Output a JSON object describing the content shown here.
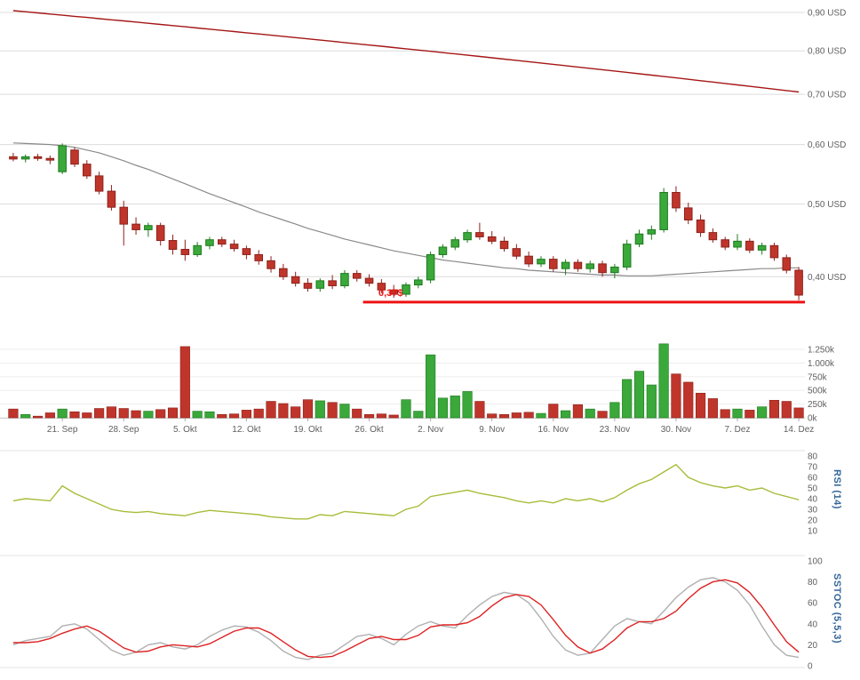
{
  "colors": {
    "up": "#3aa83a",
    "up_stroke": "#1d7a1d",
    "down": "#c0352b",
    "down_stroke": "#8c211a",
    "ma_long": "#a51616",
    "ma_short": "#8a8a8a",
    "support": "#ee1111",
    "rsi_line": "#a8bc3a",
    "stoch_k": "#b0b0b0",
    "stoch_d": "#dd2222",
    "grid": "#dcdcdc",
    "axis_text": "#606060",
    "panel_label": "#336699"
  },
  "x_axis": {
    "tick_labels": [
      "21. Sep",
      "28. Sep",
      "5. Okt",
      "12. Okt",
      "19. Okt",
      "26. Okt",
      "2. Nov",
      "9. Nov",
      "16. Nov",
      "23. Nov",
      "30. Nov",
      "7. Dez",
      "14. Dez"
    ],
    "tick_indices": [
      4,
      9,
      14,
      19,
      24,
      29,
      34,
      39,
      44,
      49,
      54,
      59,
      64
    ]
  },
  "chart_data": [
    {
      "id": "price",
      "type": "candlestick",
      "title": "",
      "y_scale": "log",
      "ylim": [
        0.355,
        0.93
      ],
      "y_ticks": [
        {
          "v": 0.9,
          "label": "0,90 USD"
        },
        {
          "v": 0.8,
          "label": "0,80 USD"
        },
        {
          "v": 0.7,
          "label": "0,70 USD"
        },
        {
          "v": 0.6,
          "label": "0,60 USD"
        },
        {
          "v": 0.5,
          "label": "0,50 USD"
        },
        {
          "v": 0.4,
          "label": "0,40 USD"
        }
      ],
      "candles": [
        [
          0.578,
          0.585,
          0.57,
          0.574
        ],
        [
          0.574,
          0.582,
          0.568,
          0.578
        ],
        [
          0.578,
          0.583,
          0.571,
          0.575
        ],
        [
          0.575,
          0.58,
          0.565,
          0.572
        ],
        [
          0.552,
          0.602,
          0.548,
          0.598
        ],
        [
          0.59,
          0.595,
          0.56,
          0.565
        ],
        [
          0.565,
          0.572,
          0.54,
          0.545
        ],
        [
          0.545,
          0.552,
          0.515,
          0.52
        ],
        [
          0.52,
          0.53,
          0.49,
          0.495
        ],
        [
          0.495,
          0.505,
          0.44,
          0.47
        ],
        [
          0.47,
          0.48,
          0.455,
          0.462
        ],
        [
          0.462,
          0.472,
          0.452,
          0.468
        ],
        [
          0.468,
          0.472,
          0.44,
          0.447
        ],
        [
          0.447,
          0.455,
          0.428,
          0.435
        ],
        [
          0.435,
          0.448,
          0.42,
          0.428
        ],
        [
          0.428,
          0.445,
          0.425,
          0.44
        ],
        [
          0.44,
          0.452,
          0.435,
          0.448
        ],
        [
          0.448,
          0.452,
          0.438,
          0.442
        ],
        [
          0.442,
          0.448,
          0.432,
          0.436
        ],
        [
          0.436,
          0.44,
          0.422,
          0.428
        ],
        [
          0.428,
          0.434,
          0.415,
          0.42
        ],
        [
          0.42,
          0.426,
          0.405,
          0.41
        ],
        [
          0.41,
          0.416,
          0.396,
          0.4
        ],
        [
          0.4,
          0.406,
          0.388,
          0.392
        ],
        [
          0.392,
          0.398,
          0.382,
          0.386
        ],
        [
          0.386,
          0.398,
          0.382,
          0.395
        ],
        [
          0.395,
          0.402,
          0.385,
          0.389
        ],
        [
          0.389,
          0.408,
          0.386,
          0.404
        ],
        [
          0.404,
          0.408,
          0.394,
          0.398
        ],
        [
          0.398,
          0.403,
          0.388,
          0.392
        ],
        [
          0.392,
          0.397,
          0.38,
          0.384
        ],
        [
          0.384,
          0.39,
          0.375,
          0.379
        ],
        [
          0.379,
          0.393,
          0.376,
          0.39
        ],
        [
          0.39,
          0.4,
          0.386,
          0.396
        ],
        [
          0.396,
          0.432,
          0.392,
          0.428
        ],
        [
          0.428,
          0.442,
          0.424,
          0.438
        ],
        [
          0.438,
          0.452,
          0.434,
          0.448
        ],
        [
          0.448,
          0.462,
          0.444,
          0.458
        ],
        [
          0.458,
          0.472,
          0.448,
          0.452
        ],
        [
          0.452,
          0.46,
          0.442,
          0.446
        ],
        [
          0.446,
          0.452,
          0.432,
          0.436
        ],
        [
          0.436,
          0.442,
          0.422,
          0.426
        ],
        [
          0.426,
          0.432,
          0.412,
          0.416
        ],
        [
          0.416,
          0.426,
          0.412,
          0.422
        ],
        [
          0.422,
          0.426,
          0.406,
          0.41
        ],
        [
          0.41,
          0.422,
          0.402,
          0.418
        ],
        [
          0.418,
          0.422,
          0.406,
          0.41
        ],
        [
          0.41,
          0.42,
          0.405,
          0.416
        ],
        [
          0.416,
          0.42,
          0.4,
          0.405
        ],
        [
          0.405,
          0.416,
          0.398,
          0.412
        ],
        [
          0.412,
          0.448,
          0.408,
          0.442
        ],
        [
          0.442,
          0.462,
          0.438,
          0.456
        ],
        [
          0.456,
          0.468,
          0.448,
          0.462
        ],
        [
          0.462,
          0.525,
          0.458,
          0.518
        ],
        [
          0.518,
          0.528,
          0.488,
          0.494
        ],
        [
          0.494,
          0.502,
          0.47,
          0.476
        ],
        [
          0.476,
          0.484,
          0.452,
          0.458
        ],
        [
          0.458,
          0.464,
          0.444,
          0.448
        ],
        [
          0.448,
          0.452,
          0.434,
          0.438
        ],
        [
          0.438,
          0.456,
          0.434,
          0.446
        ],
        [
          0.446,
          0.45,
          0.43,
          0.434
        ],
        [
          0.434,
          0.444,
          0.428,
          0.44
        ],
        [
          0.44,
          0.444,
          0.42,
          0.424
        ],
        [
          0.424,
          0.428,
          0.404,
          0.408
        ],
        [
          0.408,
          0.412,
          0.372,
          0.378
        ]
      ],
      "overlays": [
        {
          "name": "ma-long-line",
          "color": "#a51616",
          "width": 1.4,
          "values": [
            0.905,
            0.9019,
            0.8988,
            0.8956,
            0.8925,
            0.8894,
            0.8863,
            0.8831,
            0.88,
            0.8769,
            0.8738,
            0.8706,
            0.8675,
            0.8644,
            0.8613,
            0.8581,
            0.855,
            0.8519,
            0.8488,
            0.8456,
            0.8425,
            0.8394,
            0.8363,
            0.8331,
            0.83,
            0.8269,
            0.8238,
            0.8206,
            0.8175,
            0.8144,
            0.8113,
            0.8081,
            0.805,
            0.8019,
            0.7988,
            0.7956,
            0.7925,
            0.7894,
            0.7863,
            0.7831,
            0.78,
            0.7769,
            0.7738,
            0.7706,
            0.7675,
            0.7644,
            0.7613,
            0.7581,
            0.755,
            0.7519,
            0.7488,
            0.7456,
            0.7425,
            0.7394,
            0.7363,
            0.7331,
            0.73,
            0.7269,
            0.7238,
            0.7206,
            0.7175,
            0.7144,
            0.7113,
            0.7081,
            0.705
          ]
        },
        {
          "name": "ma-short-line",
          "color": "#8a8a8a",
          "width": 1.2,
          "values": [
            0.603,
            0.602,
            0.601,
            0.6,
            0.598,
            0.595,
            0.59,
            0.585,
            0.578,
            0.571,
            0.563,
            0.556,
            0.548,
            0.54,
            0.532,
            0.524,
            0.516,
            0.509,
            0.502,
            0.495,
            0.488,
            0.482,
            0.476,
            0.47,
            0.464,
            0.459,
            0.454,
            0.449,
            0.445,
            0.441,
            0.437,
            0.433,
            0.43,
            0.427,
            0.424,
            0.421,
            0.419,
            0.417,
            0.415,
            0.413,
            0.411,
            0.41,
            0.408,
            0.407,
            0.406,
            0.405,
            0.404,
            0.403,
            0.402,
            0.402,
            0.401,
            0.401,
            0.401,
            0.402,
            0.403,
            0.404,
            0.405,
            0.406,
            0.407,
            0.408,
            0.409,
            0.41,
            0.41,
            0.411,
            0.411
          ]
        }
      ],
      "support_line": {
        "value": 0.37,
        "label": "0,37$",
        "start_index": 29
      }
    },
    {
      "id": "volume",
      "type": "bar",
      "unit": "k",
      "ylim": [
        0,
        1400
      ],
      "y_ticks": [
        {
          "v": 1250,
          "label": "1.250k"
        },
        {
          "v": 1000,
          "label": "1.000k"
        },
        {
          "v": 750,
          "label": "750k"
        },
        {
          "v": 500,
          "label": "500k"
        },
        {
          "v": 250,
          "label": "250k"
        },
        {
          "v": 0,
          "label": "0k"
        }
      ],
      "values": [
        160,
        60,
        30,
        90,
        160,
        110,
        90,
        170,
        200,
        170,
        130,
        120,
        150,
        180,
        1300,
        120,
        110,
        60,
        70,
        140,
        160,
        300,
        260,
        200,
        330,
        310,
        280,
        250,
        160,
        60,
        70,
        50,
        330,
        120,
        1150,
        360,
        400,
        480,
        300,
        70,
        60,
        90,
        100,
        80,
        250,
        130,
        240,
        160,
        120,
        280,
        700,
        850,
        600,
        1350,
        800,
        650,
        450,
        350,
        150,
        160,
        140,
        200,
        320,
        300,
        180
      ]
    },
    {
      "id": "rsi",
      "type": "line",
      "title": "RSI (14)",
      "ylim": [
        10,
        80
      ],
      "color": "#a8bc3a",
      "y_ticks": [
        {
          "v": 80,
          "label": "80"
        },
        {
          "v": 70,
          "label": "70"
        },
        {
          "v": 60,
          "label": "60"
        },
        {
          "v": 50,
          "label": "50"
        },
        {
          "v": 40,
          "label": "40"
        },
        {
          "v": 30,
          "label": "30"
        },
        {
          "v": 20,
          "label": "20"
        },
        {
          "v": 10,
          "label": "10"
        }
      ],
      "values": [
        38,
        40,
        39,
        38,
        52,
        45,
        40,
        35,
        30,
        28,
        27,
        28,
        26,
        25,
        24,
        27,
        29,
        28,
        27,
        26,
        25,
        23,
        22,
        21,
        21,
        25,
        24,
        28,
        27,
        26,
        25,
        24,
        30,
        33,
        42,
        44,
        46,
        48,
        45,
        43,
        41,
        38,
        36,
        38,
        36,
        40,
        38,
        40,
        37,
        41,
        48,
        54,
        58,
        65,
        72,
        60,
        55,
        52,
        50,
        52,
        48,
        50,
        45,
        42,
        39
      ]
    },
    {
      "id": "sstoc",
      "type": "line",
      "title": "SSTOC (5,5,3)",
      "ylim": [
        0,
        100
      ],
      "y_ticks": [
        {
          "v": 100,
          "label": "100"
        },
        {
          "v": 80,
          "label": "80"
        },
        {
          "v": 60,
          "label": "60"
        },
        {
          "v": 40,
          "label": "40"
        },
        {
          "v": 20,
          "label": "20"
        },
        {
          "v": 0,
          "label": "0"
        }
      ],
      "series": [
        {
          "name": "K",
          "color": "#b0b0b0",
          "values": [
            20,
            24,
            26,
            28,
            38,
            40,
            35,
            25,
            15,
            10,
            13,
            20,
            22,
            18,
            16,
            20,
            28,
            34,
            38,
            37,
            32,
            24,
            14,
            8,
            6,
            10,
            12,
            20,
            28,
            30,
            26,
            20,
            30,
            38,
            42,
            38,
            36,
            48,
            58,
            66,
            70,
            68,
            60,
            45,
            28,
            15,
            10,
            12,
            25,
            38,
            45,
            42,
            40,
            52,
            65,
            75,
            82,
            84,
            80,
            72,
            58,
            38,
            20,
            10,
            8
          ]
        },
        {
          "name": "D",
          "color": "#dd2222",
          "values": [
            22,
            22,
            23,
            26,
            31,
            35,
            38,
            33,
            25,
            17,
            13,
            14,
            18,
            20,
            19,
            18,
            21,
            27,
            33,
            36,
            36,
            31,
            23,
            15,
            9,
            8,
            9,
            14,
            20,
            26,
            28,
            25,
            25,
            29,
            37,
            39,
            39,
            41,
            47,
            57,
            65,
            68,
            66,
            58,
            44,
            29,
            18,
            12,
            16,
            25,
            36,
            42,
            42,
            45,
            52,
            64,
            74,
            80,
            82,
            79,
            70,
            56,
            39,
            23,
            13
          ]
        }
      ]
    }
  ]
}
